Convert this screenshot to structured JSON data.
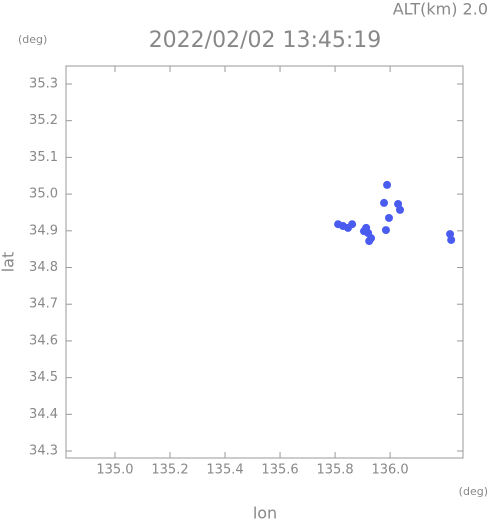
{
  "chart_data": {
    "type": "scatter",
    "title": "2022/02/02 13:45:19",
    "altitude_label": "ALT(km) 2.0",
    "y_unit": "(deg)",
    "x_unit": "(deg)",
    "xlabel": "lon",
    "ylabel": "lat",
    "xlim": [
      134.822,
      136.265
    ],
    "ylim": [
      34.281,
      35.349
    ],
    "xticks": [
      {
        "value": 135.0,
        "label": "135.0"
      },
      135.2,
      135.4,
      135.6,
      135.8,
      {
        "value": 136.0,
        "label": "136.0"
      }
    ],
    "yticks": [
      34.3,
      34.4,
      34.5,
      34.6,
      34.7,
      34.8,
      34.9,
      {
        "value": 35.0,
        "label": "35.0"
      },
      35.1,
      35.2,
      35.3
    ],
    "series": [
      {
        "color": "#4a5cf0",
        "x": [
          135.811,
          135.829,
          135.847,
          135.862,
          135.913,
          135.92,
          135.931,
          135.924,
          135.905,
          135.985,
          135.996,
          135.978,
          136.029,
          136.036,
          135.989,
          136.218,
          136.222
        ],
        "values": [
          34.918,
          34.913,
          34.908,
          34.918,
          34.908,
          34.894,
          34.88,
          34.872,
          34.899,
          34.902,
          34.935,
          34.976,
          34.973,
          34.957,
          35.025,
          34.891,
          34.875
        ]
      }
    ]
  }
}
